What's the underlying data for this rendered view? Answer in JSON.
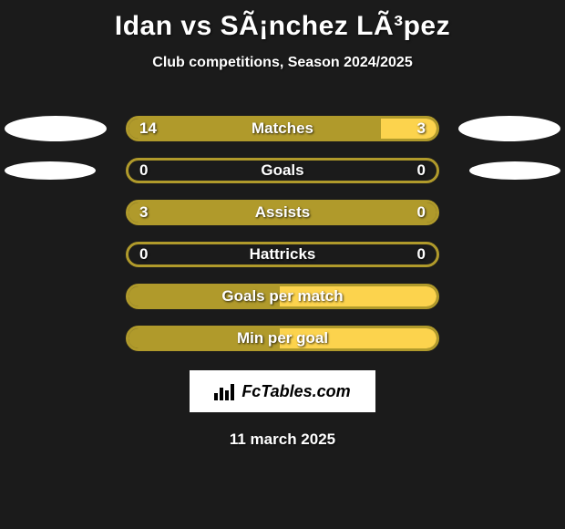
{
  "title": "Idan vs SÃ¡nchez LÃ³pez",
  "subtitle": "Club competitions, Season 2024/2025",
  "date": "11 march 2025",
  "logo_text": "FcTables.com",
  "colors": {
    "background": "#1b1b1b",
    "bar_border": "#b09a2b",
    "fill_left": "#b09a2b",
    "fill_right": "#fcd34d",
    "ellipse": "#ffffff",
    "text": "#ffffff"
  },
  "rows": [
    {
      "label": "Matches",
      "left_value": "14",
      "right_value": "3",
      "left_num": 14,
      "right_num": 3,
      "left_ellipse_w": 112,
      "left_ellipse_h": 28,
      "right_ellipse_w": 112,
      "right_ellipse_h": 28,
      "show_ellipses": true,
      "show_values": true
    },
    {
      "label": "Goals",
      "left_value": "0",
      "right_value": "0",
      "left_num": 0,
      "right_num": 0,
      "left_ellipse_w": 100,
      "left_ellipse_h": 20,
      "right_ellipse_w": 100,
      "right_ellipse_h": 20,
      "show_ellipses": true,
      "show_values": true
    },
    {
      "label": "Assists",
      "left_value": "3",
      "right_value": "0",
      "left_num": 3,
      "right_num": 0,
      "show_ellipses": false,
      "show_values": true
    },
    {
      "label": "Hattricks",
      "left_value": "0",
      "right_value": "0",
      "left_num": 0,
      "right_num": 0,
      "show_ellipses": false,
      "show_values": true
    },
    {
      "label": "Goals per match",
      "left_value": "",
      "right_value": "",
      "left_num": 1,
      "right_num": 1,
      "show_ellipses": false,
      "show_values": false
    },
    {
      "label": "Min per goal",
      "left_value": "",
      "right_value": "",
      "left_num": 1,
      "right_num": 1,
      "show_ellipses": false,
      "show_values": false
    }
  ]
}
